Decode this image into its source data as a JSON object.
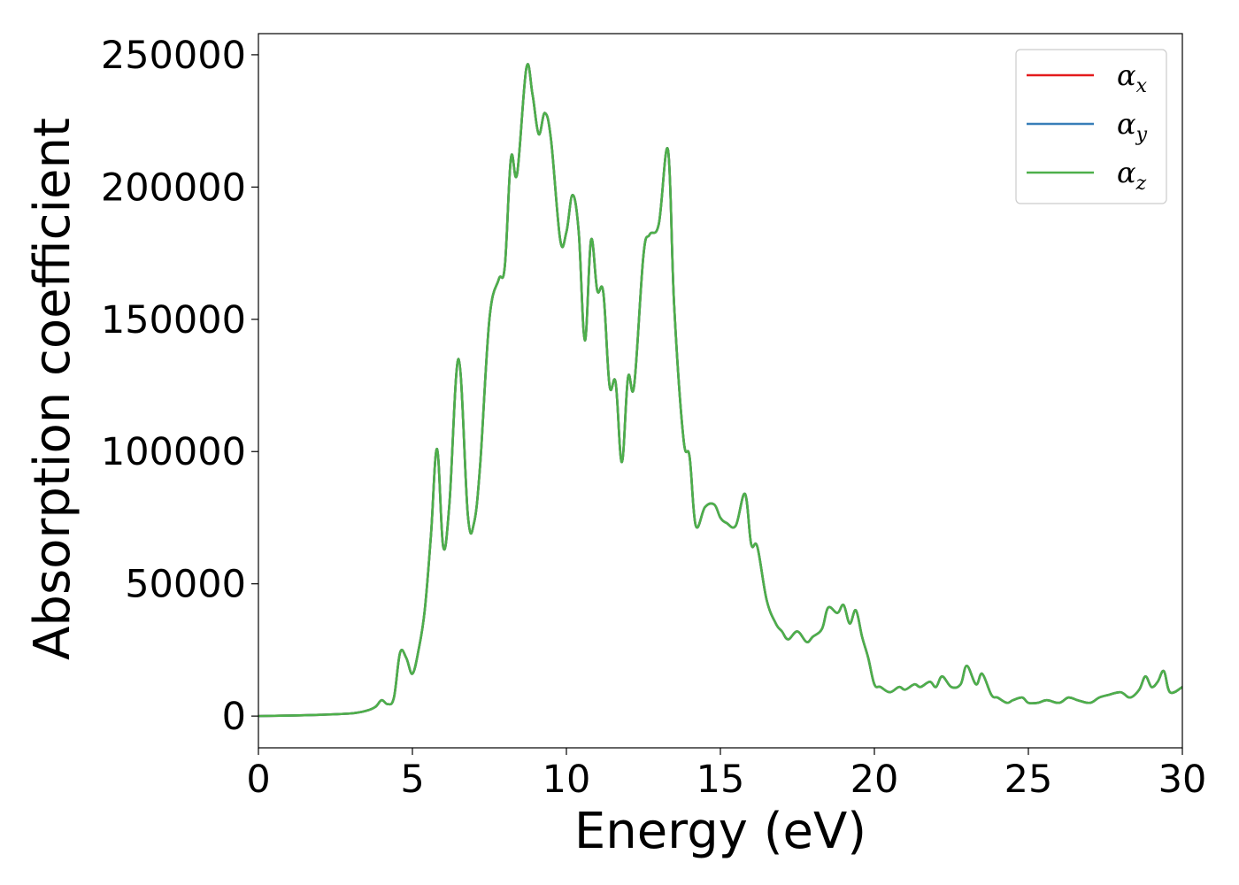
{
  "chart_data": {
    "type": "line",
    "title": "",
    "xlabel": "Energy (eV)",
    "ylabel": "Absorption coefficient",
    "xlim": [
      0,
      30
    ],
    "ylim": [
      -12000,
      258000
    ],
    "xticks": [
      0,
      5,
      10,
      15,
      20,
      25,
      30
    ],
    "xtick_labels": [
      "0",
      "5",
      "10",
      "15",
      "20",
      "25",
      "30"
    ],
    "yticks": [
      0,
      50000,
      100000,
      150000,
      200000,
      250000
    ],
    "ytick_labels": [
      "0",
      "50000",
      "100000",
      "150000",
      "200000",
      "250000"
    ],
    "grid": false,
    "legend_position": "top-right",
    "legend": [
      {
        "symbol": "α",
        "subscript": "x",
        "color": "#e41a1c"
      },
      {
        "symbol": "α",
        "subscript": "y",
        "color": "#377eb8"
      },
      {
        "symbol": "α",
        "subscript": "z",
        "color": "#4daf4a"
      }
    ],
    "series": [
      {
        "color": "#e41a1c",
        "x": [
          0,
          1,
          2,
          3,
          3.5,
          3.8,
          4.0,
          4.2,
          4.4,
          4.6,
          4.8,
          5.0,
          5.2,
          5.4,
          5.6,
          5.8,
          6.0,
          6.2,
          6.5,
          6.8,
          7.0,
          7.2,
          7.5,
          7.8,
          8.0,
          8.2,
          8.4,
          8.7,
          8.9,
          9.1,
          9.3,
          9.5,
          9.8,
          10.0,
          10.2,
          10.4,
          10.6,
          10.8,
          11.0,
          11.2,
          11.4,
          11.6,
          11.8,
          12.0,
          12.2,
          12.5,
          12.7,
          13.0,
          13.3,
          13.5,
          13.8,
          14.0,
          14.2,
          14.5,
          14.8,
          15.0,
          15.2,
          15.5,
          15.8,
          16.0,
          16.2,
          16.5,
          16.8,
          17.0,
          17.2,
          17.5,
          17.8,
          18.0,
          18.3,
          18.5,
          18.8,
          19.0,
          19.2,
          19.4,
          19.6,
          19.8,
          20.0,
          20.2,
          20.5,
          20.8,
          21.0,
          21.3,
          21.5,
          21.8,
          22.0,
          22.2,
          22.5,
          22.8,
          23.0,
          23.3,
          23.5,
          23.8,
          24.0,
          24.3,
          24.5,
          24.8,
          25.0,
          25.3,
          25.6,
          26.0,
          26.3,
          26.6,
          27.0,
          27.3,
          27.6,
          28.0,
          28.3,
          28.6,
          28.8,
          29.0,
          29.2,
          29.4,
          29.6,
          30.0
        ],
        "y": [
          0,
          200,
          500,
          1000,
          2000,
          3500,
          6000,
          4500,
          7000,
          24000,
          22000,
          16000,
          25000,
          40000,
          68000,
          101000,
          64000,
          80000,
          135000,
          76000,
          73000,
          95000,
          150000,
          165000,
          170000,
          211000,
          205000,
          245000,
          235000,
          220000,
          228000,
          218000,
          180000,
          183000,
          197000,
          183000,
          142000,
          180000,
          161000,
          160000,
          125000,
          126000,
          96000,
          128000,
          125000,
          174000,
          182000,
          186000,
          214000,
          155000,
          105000,
          98000,
          72000,
          79000,
          80000,
          75000,
          73000,
          72000,
          84000,
          65000,
          64000,
          44000,
          35000,
          32000,
          29000,
          32000,
          28000,
          30000,
          33000,
          41000,
          39000,
          42000,
          35000,
          40000,
          30000,
          22000,
          12000,
          11000,
          9000,
          11000,
          10000,
          12000,
          11000,
          13000,
          11000,
          15000,
          11000,
          12000,
          19000,
          12000,
          16000,
          8000,
          7000,
          5000,
          6000,
          7000,
          5000,
          5000,
          6000,
          5000,
          7000,
          6000,
          5000,
          7000,
          8000,
          9000,
          7000,
          10000,
          15000,
          11000,
          13000,
          17000,
          9000,
          11000
        ]
      },
      {
        "color": "#377eb8",
        "x": [
          0,
          1,
          2,
          3,
          3.5,
          3.8,
          4.0,
          4.2,
          4.4,
          4.6,
          4.8,
          5.0,
          5.2,
          5.4,
          5.6,
          5.8,
          6.0,
          6.2,
          6.5,
          6.8,
          7.0,
          7.2,
          7.5,
          7.8,
          8.0,
          8.2,
          8.4,
          8.7,
          8.9,
          9.1,
          9.3,
          9.5,
          9.8,
          10.0,
          10.2,
          10.4,
          10.6,
          10.8,
          11.0,
          11.2,
          11.4,
          11.6,
          11.8,
          12.0,
          12.2,
          12.5,
          12.7,
          13.0,
          13.3,
          13.5,
          13.8,
          14.0,
          14.2,
          14.5,
          14.8,
          15.0,
          15.2,
          15.5,
          15.8,
          16.0,
          16.2,
          16.5,
          16.8,
          17.0,
          17.2,
          17.5,
          17.8,
          18.0,
          18.3,
          18.5,
          18.8,
          19.0,
          19.2,
          19.4,
          19.6,
          19.8,
          20.0,
          20.2,
          20.5,
          20.8,
          21.0,
          21.3,
          21.5,
          21.8,
          22.0,
          22.2,
          22.5,
          22.8,
          23.0,
          23.3,
          23.5,
          23.8,
          24.0,
          24.3,
          24.5,
          24.8,
          25.0,
          25.3,
          25.6,
          26.0,
          26.3,
          26.6,
          27.0,
          27.3,
          27.6,
          28.0,
          28.3,
          28.6,
          28.8,
          29.0,
          29.2,
          29.4,
          29.6,
          30.0
        ],
        "y": [
          0,
          200,
          500,
          1000,
          2000,
          3500,
          6000,
          4500,
          7000,
          24000,
          22000,
          16000,
          25000,
          40000,
          68000,
          101000,
          64000,
          80000,
          135000,
          76000,
          73000,
          95000,
          150000,
          165000,
          170000,
          211000,
          205000,
          245000,
          235000,
          220000,
          228000,
          218000,
          180000,
          183000,
          197000,
          183000,
          142000,
          180000,
          161000,
          160000,
          125000,
          126000,
          96000,
          128000,
          125000,
          174000,
          182000,
          186000,
          214000,
          155000,
          105000,
          98000,
          72000,
          79000,
          80000,
          75000,
          73000,
          72000,
          84000,
          65000,
          64000,
          44000,
          35000,
          32000,
          29000,
          32000,
          28000,
          30000,
          33000,
          41000,
          39000,
          42000,
          35000,
          40000,
          30000,
          22000,
          12000,
          11000,
          9000,
          11000,
          10000,
          12000,
          11000,
          13000,
          11000,
          15000,
          11000,
          12000,
          19000,
          12000,
          16000,
          8000,
          7000,
          5000,
          6000,
          7000,
          5000,
          5000,
          6000,
          5000,
          7000,
          6000,
          5000,
          7000,
          8000,
          9000,
          7000,
          10000,
          15000,
          11000,
          13000,
          17000,
          9000,
          11000
        ]
      },
      {
        "color": "#4daf4a",
        "x": [
          0,
          1,
          2,
          3,
          3.5,
          3.8,
          4.0,
          4.2,
          4.4,
          4.6,
          4.8,
          5.0,
          5.2,
          5.4,
          5.6,
          5.8,
          6.0,
          6.2,
          6.5,
          6.8,
          7.0,
          7.2,
          7.5,
          7.8,
          8.0,
          8.2,
          8.4,
          8.7,
          8.9,
          9.1,
          9.3,
          9.5,
          9.8,
          10.0,
          10.2,
          10.4,
          10.6,
          10.8,
          11.0,
          11.2,
          11.4,
          11.6,
          11.8,
          12.0,
          12.2,
          12.5,
          12.7,
          13.0,
          13.3,
          13.5,
          13.8,
          14.0,
          14.2,
          14.5,
          14.8,
          15.0,
          15.2,
          15.5,
          15.8,
          16.0,
          16.2,
          16.5,
          16.8,
          17.0,
          17.2,
          17.5,
          17.8,
          18.0,
          18.3,
          18.5,
          18.8,
          19.0,
          19.2,
          19.4,
          19.6,
          19.8,
          20.0,
          20.2,
          20.5,
          20.8,
          21.0,
          21.3,
          21.5,
          21.8,
          22.0,
          22.2,
          22.5,
          22.8,
          23.0,
          23.3,
          23.5,
          23.8,
          24.0,
          24.3,
          24.5,
          24.8,
          25.0,
          25.3,
          25.6,
          26.0,
          26.3,
          26.6,
          27.0,
          27.3,
          27.6,
          28.0,
          28.3,
          28.6,
          28.8,
          29.0,
          29.2,
          29.4,
          29.6,
          30.0
        ],
        "y": [
          0,
          200,
          500,
          1000,
          2000,
          3500,
          6000,
          4500,
          7000,
          24000,
          22000,
          16000,
          25000,
          40000,
          68000,
          101000,
          64000,
          80000,
          135000,
          76000,
          73000,
          95000,
          150000,
          165000,
          170000,
          211000,
          205000,
          245000,
          235000,
          220000,
          228000,
          218000,
          180000,
          183000,
          197000,
          183000,
          142000,
          180000,
          161000,
          160000,
          125000,
          126000,
          96000,
          128000,
          125000,
          174000,
          182000,
          186000,
          214000,
          155000,
          105000,
          98000,
          72000,
          79000,
          80000,
          75000,
          73000,
          72000,
          84000,
          65000,
          64000,
          44000,
          35000,
          32000,
          29000,
          32000,
          28000,
          30000,
          33000,
          41000,
          39000,
          42000,
          35000,
          40000,
          30000,
          22000,
          12000,
          11000,
          9000,
          11000,
          10000,
          12000,
          11000,
          13000,
          11000,
          15000,
          11000,
          12000,
          19000,
          12000,
          16000,
          8000,
          7000,
          5000,
          6000,
          7000,
          5000,
          5000,
          6000,
          5000,
          7000,
          6000,
          5000,
          7000,
          8000,
          9000,
          7000,
          10000,
          15000,
          11000,
          13000,
          17000,
          9000,
          11000
        ]
      }
    ]
  }
}
